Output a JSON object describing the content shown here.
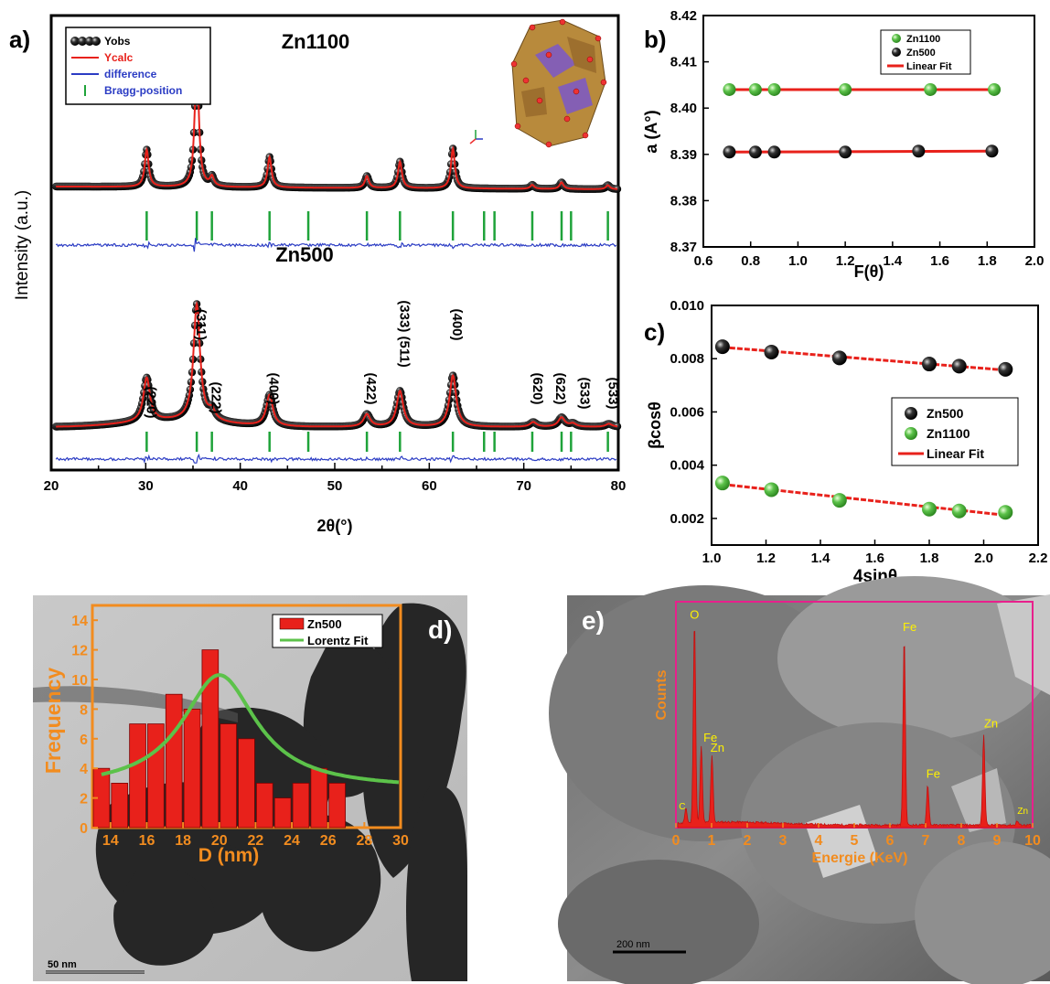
{
  "chart_data": [
    {
      "panel": "a)",
      "type": "line",
      "xlabel": "2θ(°)",
      "ylabel": "Intensity (a.u.)",
      "xlim": [
        20,
        80
      ],
      "xticks": [
        20,
        30,
        40,
        50,
        60,
        70,
        80
      ],
      "legend": {
        "placement": "top-left",
        "entries": [
          "Yobs",
          "Ycalc",
          "difference",
          "Bragg-position"
        ]
      },
      "colors": {
        "yobs": "#000000",
        "ycalc": "#e8211b",
        "difference": "#2b3cc4",
        "bragg": "#1fa33a"
      },
      "series": [
        {
          "name": "Zn1100",
          "peaks": [
            {
              "x": 30.1,
              "height": 0.28
            },
            {
              "x": 35.4,
              "height": 1.0
            },
            {
              "x": 37.0,
              "height": 0.07
            },
            {
              "x": 43.1,
              "height": 0.23
            },
            {
              "x": 53.4,
              "height": 0.09
            },
            {
              "x": 56.9,
              "height": 0.2
            },
            {
              "x": 62.5,
              "height": 0.3
            },
            {
              "x": 70.9,
              "height": 0.03
            },
            {
              "x": 74.0,
              "height": 0.05
            },
            {
              "x": 78.9,
              "height": 0.03
            }
          ],
          "bragg_positions": [
            30.1,
            35.4,
            37.0,
            43.1,
            47.2,
            53.4,
            56.9,
            62.5,
            65.8,
            66.9,
            70.9,
            74.0,
            75.0,
            78.9
          ]
        },
        {
          "name": "Zn500",
          "peaks": [
            {
              "x": 30.1,
              "height": 0.28,
              "hkl": "(220)"
            },
            {
              "x": 35.4,
              "height": 0.75,
              "hkl": "(311)"
            },
            {
              "x": 37.0,
              "height": 0.06,
              "hkl": "(222)"
            },
            {
              "x": 43.1,
              "height": 0.2,
              "hkl": "(400)"
            },
            {
              "x": 53.4,
              "height": 0.08,
              "hkl": "(422)"
            },
            {
              "x": 56.9,
              "height": 0.23,
              "hkl": "(333) (511)"
            },
            {
              "x": 62.5,
              "height": 0.33,
              "hkl": "(400)"
            },
            {
              "x": 71.0,
              "height": 0.03,
              "hkl": "(620)"
            },
            {
              "x": 74.0,
              "height": 0.06,
              "hkl": "(622)"
            },
            {
              "x": 75.2,
              "height": 0.02,
              "hkl": "(533)"
            },
            {
              "x": 79.0,
              "height": 0.02,
              "hkl": "(533)"
            }
          ],
          "bragg_positions": [
            30.1,
            35.4,
            37.0,
            43.1,
            47.2,
            53.4,
            56.9,
            62.5,
            65.8,
            66.9,
            70.9,
            74.0,
            75.0,
            78.9
          ]
        }
      ]
    },
    {
      "panel": "b)",
      "type": "scatter",
      "xlabel": "F(θ)",
      "ylabel": "a (A°)",
      "xlim": [
        0.6,
        2.0
      ],
      "ylim": [
        8.37,
        8.42
      ],
      "xticks": [
        0.6,
        0.8,
        1.0,
        1.2,
        1.4,
        1.6,
        1.8,
        2.0
      ],
      "yticks": [
        8.37,
        8.38,
        8.39,
        8.4,
        8.41,
        8.42
      ],
      "legend": {
        "placement": "top-right",
        "entries": [
          "Zn1100",
          "Zn500",
          "Linear Fit"
        ]
      },
      "series": [
        {
          "name": "Zn1100",
          "color": "#5cc24a",
          "x": [
            0.71,
            0.82,
            0.9,
            1.2,
            1.56,
            1.83
          ],
          "y": [
            8.404,
            8.404,
            8.404,
            8.404,
            8.404,
            8.404
          ]
        },
        {
          "name": "Zn500",
          "color": "#111111",
          "x": [
            0.71,
            0.82,
            0.9,
            1.2,
            1.51,
            1.82
          ],
          "y": [
            8.3905,
            8.3905,
            8.3905,
            8.3905,
            8.3907,
            8.3907
          ]
        }
      ],
      "fits": [
        {
          "x": [
            0.71,
            1.83
          ],
          "y": [
            8.404,
            8.404
          ],
          "color": "#e8211b"
        },
        {
          "x": [
            0.71,
            1.82
          ],
          "y": [
            8.3905,
            8.3907
          ],
          "color": "#e8211b"
        }
      ]
    },
    {
      "panel": "c)",
      "type": "scatter",
      "xlabel": "4sinθ",
      "ylabel": "βcosθ",
      "xlim": [
        1.0,
        2.2
      ],
      "ylim": [
        0.001,
        0.01
      ],
      "xticks": [
        1.0,
        1.2,
        1.4,
        1.6,
        1.8,
        2.0,
        2.2
      ],
      "yticks": [
        0.002,
        0.004,
        0.006,
        0.008,
        0.01
      ],
      "ytick_labels": [
        "0.002",
        "0.004",
        "0.006",
        "0.008",
        "0.010"
      ],
      "legend": {
        "placement": "right",
        "entries": [
          "Zn500",
          "Zn1100",
          "Linear Fit"
        ]
      },
      "series": [
        {
          "name": "Zn500",
          "color": "#111111",
          "x": [
            1.04,
            1.22,
            1.47,
            1.8,
            1.91,
            2.08
          ],
          "y": [
            0.00845,
            0.00825,
            0.00803,
            0.0078,
            0.00772,
            0.0076
          ]
        },
        {
          "name": "Zn1100",
          "color": "#5cc24a",
          "x": [
            1.04,
            1.22,
            1.47,
            1.8,
            1.91,
            2.08
          ],
          "y": [
            0.00333,
            0.00308,
            0.00268,
            0.00235,
            0.00228,
            0.00223
          ]
        }
      ],
      "fits": [
        {
          "x": [
            1.04,
            2.08
          ],
          "y": [
            0.00843,
            0.00757
          ],
          "color": "#e8211b"
        },
        {
          "x": [
            1.04,
            2.08
          ],
          "y": [
            0.00328,
            0.00212
          ],
          "color": "#e8211b"
        }
      ]
    },
    {
      "panel": "d)",
      "type": "bar",
      "xlabel": "D (nm)",
      "ylabel": "Frequency",
      "xlim": [
        13,
        30
      ],
      "ylim": [
        0,
        15
      ],
      "xticks": [
        14,
        16,
        18,
        20,
        22,
        24,
        26,
        28,
        30
      ],
      "yticks": [
        0,
        2,
        4,
        6,
        8,
        10,
        12,
        14
      ],
      "legend": {
        "placement": "top-right",
        "entries": [
          "Zn500",
          "Lorentz Fit"
        ]
      },
      "bins": [
        13.5,
        14.5,
        15.5,
        16.5,
        17.5,
        18.5,
        19.5,
        20.5,
        21.5,
        22.5,
        23.5,
        24.5,
        25.5,
        26.5,
        27.5,
        28.5,
        29.5
      ],
      "values": [
        4,
        3,
        7,
        7,
        9,
        8,
        12,
        7,
        6,
        3,
        2,
        3,
        4,
        3,
        0,
        0,
        0
      ],
      "fit": {
        "type": "lorentz",
        "center": 20.0,
        "peak": 10.3,
        "baseline": 2.6,
        "width": 5.0
      },
      "scale_bar": "50 nm"
    },
    {
      "panel": "e)",
      "type": "line",
      "xlabel": "Energie (KeV)",
      "ylabel": "Counts",
      "xlim": [
        0,
        10
      ],
      "xticks": [
        0,
        1,
        2,
        3,
        4,
        5,
        6,
        7,
        8,
        9,
        10
      ],
      "peaks": [
        {
          "x": 0.28,
          "height": 0.07,
          "label": "C"
        },
        {
          "x": 0.52,
          "height": 1.0,
          "label": "O"
        },
        {
          "x": 0.71,
          "height": 0.38,
          "label": "Fe"
        },
        {
          "x": 1.01,
          "height": 0.33,
          "label": "Zn"
        },
        {
          "x": 6.4,
          "height": 0.93,
          "label": "Fe"
        },
        {
          "x": 7.06,
          "height": 0.2,
          "label": "Fe"
        },
        {
          "x": 8.63,
          "height": 0.45,
          "label": "Zn"
        },
        {
          "x": 9.57,
          "height": 0.02,
          "label": "Zn"
        }
      ],
      "scale_bar": "200 nm"
    }
  ],
  "labels": {
    "a": {
      "panel": "a)",
      "title1": "Zn1100",
      "title2": "Zn500",
      "xlabel": "2θ(°)",
      "ylabel": "Intensity (a.u.)",
      "leg1": "Yobs",
      "leg2": "Ycalc",
      "leg3": "difference",
      "leg4": "Bragg-position"
    },
    "b": {
      "panel": "b)",
      "xlabel": "F(θ)",
      "ylabel": "a (A°)",
      "leg1": "Zn1100",
      "leg2": "Zn500",
      "leg3": "Linear Fit"
    },
    "c": {
      "panel": "c)",
      "xlabel": "4sinθ",
      "ylabel": "βcosθ",
      "leg1": "Zn500",
      "leg2": "Zn1100",
      "leg3": "Linear Fit"
    },
    "d": {
      "panel": "d)",
      "xlabel": "D (nm)",
      "ylabel": "Frequency",
      "leg1": "Zn500",
      "leg2": "Lorentz Fit",
      "scale": "50 nm"
    },
    "e": {
      "panel": "e)",
      "xlabel": "Energie (KeV)",
      "ylabel": "Counts",
      "scale": "200 nm"
    }
  }
}
